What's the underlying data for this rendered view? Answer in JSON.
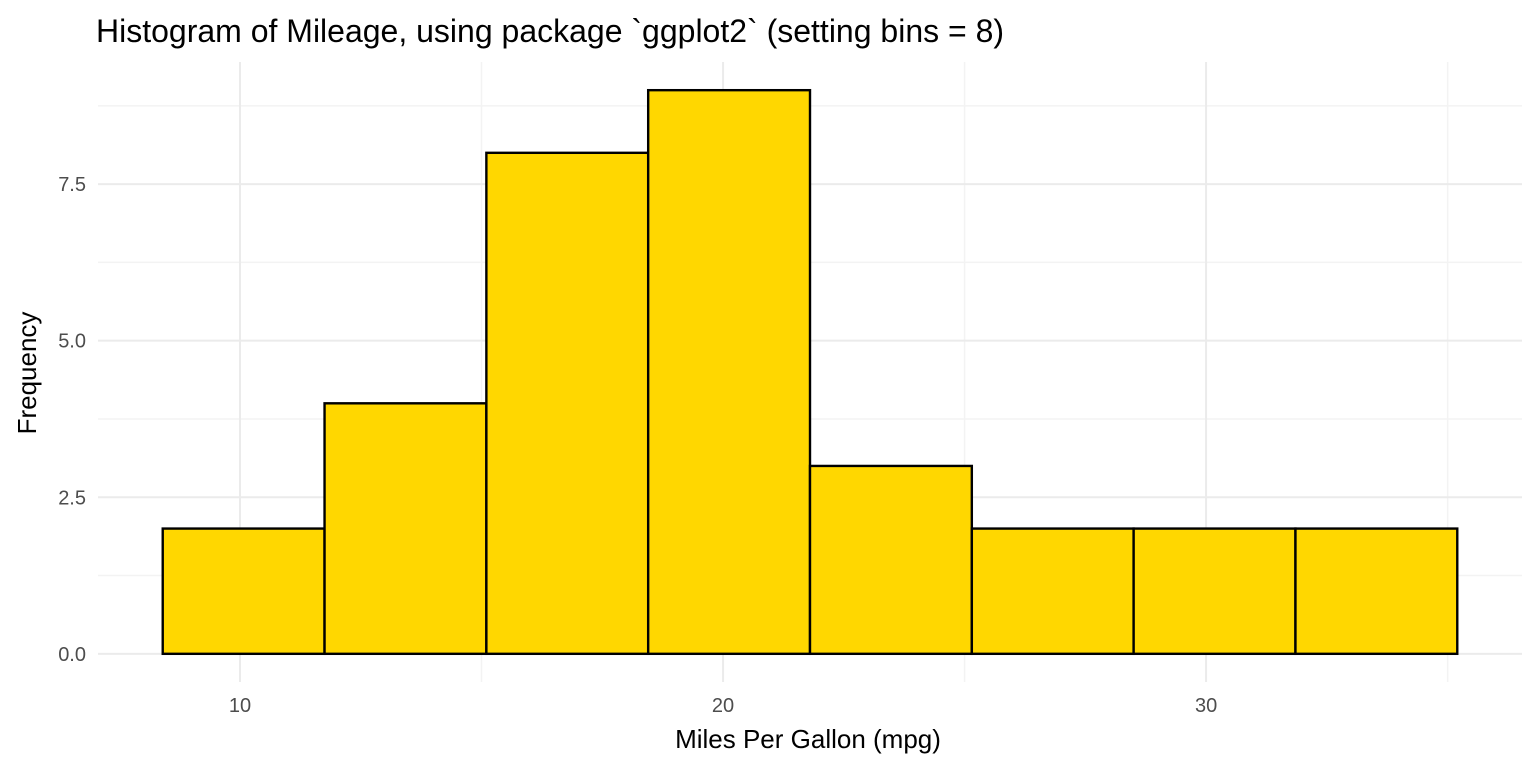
{
  "chart_data": {
    "type": "bar",
    "title": "Histogram of Mileage, using package `ggplot2` (setting bins = 8)",
    "xlabel": "Miles Per Gallon (mpg)",
    "ylabel": "Frequency",
    "bins": [
      {
        "x0": 8.4,
        "x1": 11.75,
        "count": 2
      },
      {
        "x0": 11.75,
        "x1": 15.1,
        "count": 4
      },
      {
        "x0": 15.1,
        "x1": 18.45,
        "count": 8
      },
      {
        "x0": 18.45,
        "x1": 21.8,
        "count": 9
      },
      {
        "x0": 21.8,
        "x1": 25.15,
        "count": 3
      },
      {
        "x0": 25.15,
        "x1": 28.5,
        "count": 2
      },
      {
        "x0": 28.5,
        "x1": 31.85,
        "count": 2
      },
      {
        "x0": 31.85,
        "x1": 35.2,
        "count": 2
      }
    ],
    "xlim": [
      7.06,
      36.54
    ],
    "ylim": [
      -0.45,
      9.45
    ],
    "x_ticks": [
      10,
      20,
      30
    ],
    "x_tick_labels": [
      "10",
      "20",
      "30"
    ],
    "x_minor_ticks": [
      15,
      25,
      35
    ],
    "y_ticks": [
      0,
      2.5,
      5,
      7.5
    ],
    "y_tick_labels": [
      "0.0",
      "2.5",
      "5.0",
      "7.5"
    ],
    "y_minor_ticks": [
      1.25,
      3.75,
      6.25,
      8.75
    ],
    "fill_color": "#FFD700",
    "border_color": "#000000",
    "grid": true,
    "legend": "none"
  }
}
